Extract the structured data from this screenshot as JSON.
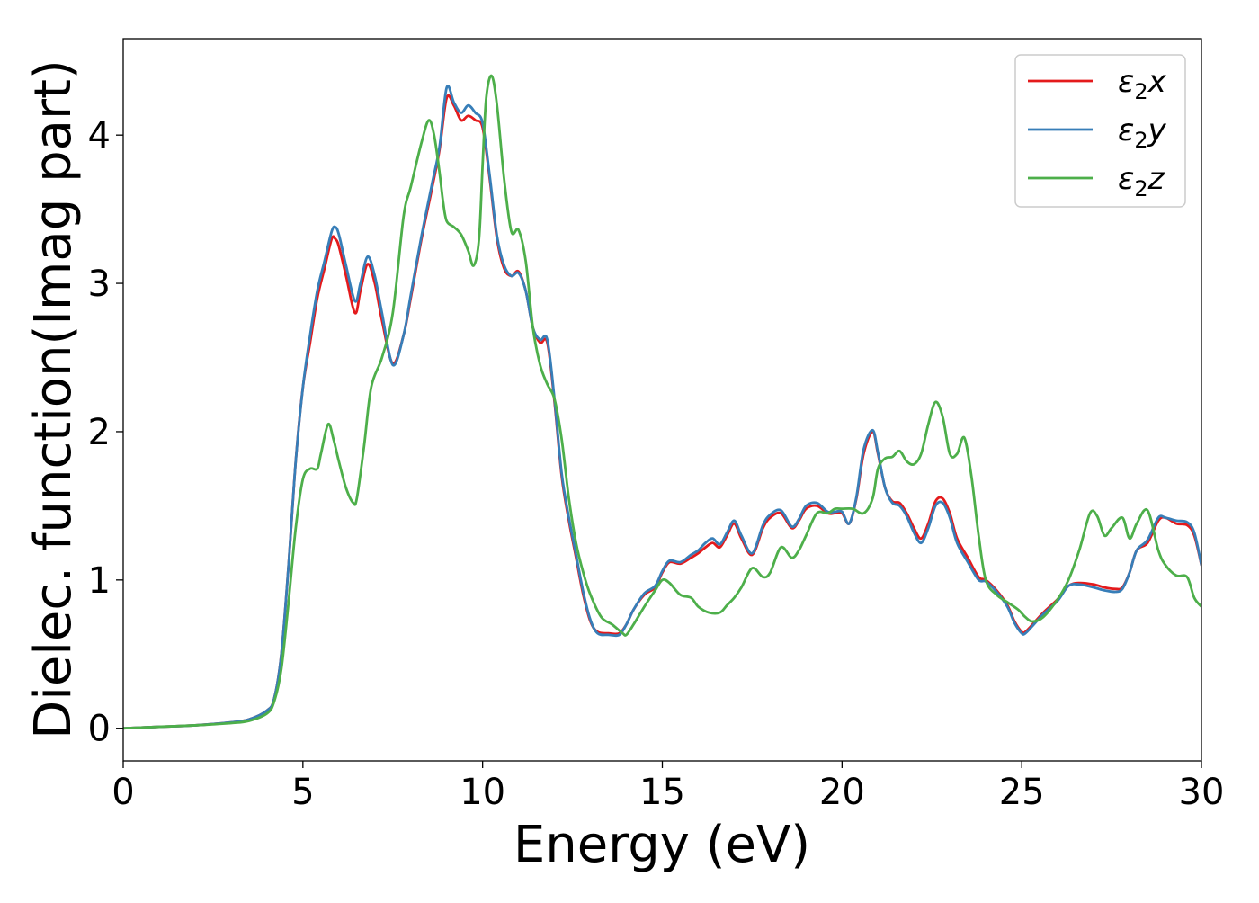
{
  "chart_data": {
    "type": "line",
    "title": "",
    "xlabel": "Energy (eV)",
    "ylabel": "Dielec. function(Imag part)",
    "xlim": [
      0,
      30
    ],
    "ylim": [
      -0.22,
      4.65
    ],
    "xticks": [
      0,
      5,
      10,
      15,
      20,
      25,
      30
    ],
    "yticks": [
      0,
      1,
      2,
      3,
      4
    ],
    "grid": false,
    "legend_position": "top-right",
    "series": [
      {
        "name": "ε₂x",
        "legend": {
          "base": "ε",
          "sub": "2",
          "suffix": "x"
        },
        "color": "#e41a1c",
        "x": [
          0,
          1,
          2,
          3,
          3.5,
          4,
          4.2,
          4.4,
          4.6,
          4.8,
          5.0,
          5.2,
          5.4,
          5.6,
          5.8,
          5.9,
          6.0,
          6.2,
          6.45,
          6.6,
          6.8,
          7.0,
          7.2,
          7.5,
          7.8,
          8.0,
          8.3,
          8.6,
          8.8,
          9.0,
          9.2,
          9.4,
          9.6,
          9.8,
          10.0,
          10.2,
          10.4,
          10.6,
          10.8,
          11.0,
          11.2,
          11.4,
          11.6,
          11.8,
          12.0,
          12.2,
          12.4,
          12.6,
          12.8,
          13.0,
          13.2,
          13.5,
          13.8,
          14.0,
          14.2,
          14.5,
          14.8,
          15.0,
          15.2,
          15.5,
          15.8,
          16.0,
          16.2,
          16.4,
          16.6,
          16.8,
          17.0,
          17.2,
          17.5,
          17.8,
          18.0,
          18.3,
          18.6,
          18.8,
          19.0,
          19.3,
          19.6,
          19.8,
          20.0,
          20.2,
          20.4,
          20.6,
          20.85,
          21.0,
          21.2,
          21.4,
          21.6,
          21.8,
          22.0,
          22.2,
          22.4,
          22.6,
          22.8,
          23.0,
          23.2,
          23.5,
          23.8,
          24.0,
          24.3,
          24.6,
          24.8,
          25.0,
          25.1,
          25.3,
          25.6,
          26.0,
          26.3,
          26.6,
          27.0,
          27.3,
          27.6,
          27.8,
          28.0,
          28.2,
          28.5,
          28.8,
          29.0,
          29.3,
          29.6,
          29.8,
          30.0
        ],
        "y": [
          0.0,
          0.01,
          0.02,
          0.04,
          0.06,
          0.12,
          0.2,
          0.5,
          1.1,
          1.8,
          2.3,
          2.6,
          2.9,
          3.1,
          3.3,
          3.3,
          3.25,
          3.05,
          2.8,
          2.95,
          3.13,
          3.0,
          2.75,
          2.46,
          2.65,
          2.9,
          3.3,
          3.65,
          3.9,
          4.25,
          4.2,
          4.1,
          4.13,
          4.1,
          4.05,
          3.7,
          3.3,
          3.1,
          3.05,
          3.08,
          2.95,
          2.7,
          2.6,
          2.6,
          2.2,
          1.7,
          1.4,
          1.15,
          0.9,
          0.72,
          0.65,
          0.64,
          0.64,
          0.7,
          0.8,
          0.9,
          0.95,
          1.05,
          1.12,
          1.11,
          1.15,
          1.18,
          1.22,
          1.25,
          1.22,
          1.3,
          1.38,
          1.28,
          1.17,
          1.35,
          1.42,
          1.45,
          1.35,
          1.4,
          1.48,
          1.5,
          1.45,
          1.45,
          1.45,
          1.38,
          1.55,
          1.85,
          2.0,
          1.85,
          1.62,
          1.53,
          1.52,
          1.45,
          1.35,
          1.28,
          1.38,
          1.53,
          1.55,
          1.45,
          1.28,
          1.15,
          1.02,
          1.0,
          0.93,
          0.83,
          0.72,
          0.65,
          0.65,
          0.7,
          0.78,
          0.87,
          0.96,
          0.98,
          0.97,
          0.95,
          0.94,
          0.95,
          1.05,
          1.2,
          1.25,
          1.4,
          1.42,
          1.38,
          1.37,
          1.3,
          1.1
        ]
      },
      {
        "name": "ε₂y",
        "legend": {
          "base": "ε",
          "sub": "2",
          "suffix": "y"
        },
        "color": "#377eb8",
        "x": [
          0,
          1,
          2,
          3,
          3.5,
          4,
          4.2,
          4.4,
          4.6,
          4.8,
          5.0,
          5.2,
          5.4,
          5.6,
          5.8,
          5.9,
          6.0,
          6.2,
          6.45,
          6.6,
          6.8,
          7.0,
          7.2,
          7.5,
          7.8,
          8.0,
          8.3,
          8.6,
          8.8,
          9.0,
          9.2,
          9.4,
          9.6,
          9.8,
          10.0,
          10.2,
          10.4,
          10.6,
          10.8,
          11.0,
          11.2,
          11.4,
          11.6,
          11.8,
          12.0,
          12.2,
          12.4,
          12.6,
          12.8,
          13.0,
          13.2,
          13.5,
          13.8,
          14.0,
          14.2,
          14.5,
          14.8,
          15.0,
          15.2,
          15.5,
          15.8,
          16.0,
          16.2,
          16.4,
          16.6,
          16.8,
          17.0,
          17.2,
          17.5,
          17.8,
          18.0,
          18.3,
          18.6,
          18.8,
          19.0,
          19.3,
          19.6,
          19.8,
          20.0,
          20.2,
          20.4,
          20.6,
          20.85,
          21.0,
          21.2,
          21.4,
          21.6,
          21.8,
          22.0,
          22.2,
          22.4,
          22.6,
          22.8,
          23.0,
          23.2,
          23.5,
          23.8,
          24.0,
          24.3,
          24.6,
          24.8,
          25.0,
          25.1,
          25.3,
          25.6,
          26.0,
          26.3,
          26.6,
          27.0,
          27.3,
          27.6,
          27.8,
          28.0,
          28.2,
          28.5,
          28.8,
          29.0,
          29.3,
          29.6,
          29.8,
          30.0
        ],
        "y": [
          0.0,
          0.01,
          0.02,
          0.04,
          0.06,
          0.12,
          0.2,
          0.5,
          1.1,
          1.8,
          2.3,
          2.65,
          2.95,
          3.15,
          3.35,
          3.38,
          3.33,
          3.12,
          2.88,
          3.0,
          3.18,
          3.05,
          2.8,
          2.45,
          2.65,
          2.92,
          3.32,
          3.68,
          3.92,
          4.32,
          4.22,
          4.15,
          4.2,
          4.15,
          4.08,
          3.72,
          3.32,
          3.12,
          3.05,
          3.07,
          2.95,
          2.7,
          2.62,
          2.62,
          2.22,
          1.72,
          1.42,
          1.17,
          0.92,
          0.73,
          0.64,
          0.63,
          0.63,
          0.7,
          0.8,
          0.91,
          0.96,
          1.06,
          1.13,
          1.12,
          1.17,
          1.2,
          1.25,
          1.28,
          1.24,
          1.32,
          1.4,
          1.3,
          1.18,
          1.37,
          1.44,
          1.47,
          1.36,
          1.41,
          1.5,
          1.52,
          1.46,
          1.46,
          1.46,
          1.38,
          1.56,
          1.88,
          2.01,
          1.86,
          1.62,
          1.52,
          1.5,
          1.43,
          1.32,
          1.25,
          1.35,
          1.5,
          1.52,
          1.42,
          1.25,
          1.12,
          1.0,
          0.99,
          0.92,
          0.82,
          0.71,
          0.64,
          0.64,
          0.69,
          0.77,
          0.86,
          0.96,
          0.97,
          0.95,
          0.93,
          0.92,
          0.94,
          1.05,
          1.2,
          1.27,
          1.42,
          1.42,
          1.4,
          1.39,
          1.32,
          1.1
        ]
      },
      {
        "name": "ε₂z",
        "legend": {
          "base": "ε",
          "sub": "2",
          "suffix": "z"
        },
        "color": "#4daf4a",
        "x": [
          0,
          1,
          2,
          3,
          3.5,
          4,
          4.2,
          4.4,
          4.6,
          4.8,
          5.0,
          5.2,
          5.4,
          5.5,
          5.7,
          5.85,
          6.0,
          6.2,
          6.4,
          6.5,
          6.7,
          6.9,
          7.2,
          7.5,
          7.8,
          8.0,
          8.3,
          8.5,
          8.65,
          8.8,
          8.9,
          9.0,
          9.2,
          9.4,
          9.6,
          9.75,
          9.9,
          10.0,
          10.1,
          10.25,
          10.4,
          10.6,
          10.8,
          11.0,
          11.2,
          11.4,
          11.6,
          11.8,
          12.0,
          12.2,
          12.4,
          12.6,
          12.8,
          13.0,
          13.3,
          13.6,
          13.9,
          14.0,
          14.2,
          14.5,
          14.8,
          15.0,
          15.2,
          15.5,
          15.8,
          16.0,
          16.3,
          16.6,
          16.8,
          17.0,
          17.2,
          17.5,
          17.8,
          18.0,
          18.3,
          18.6,
          18.8,
          19.0,
          19.3,
          19.6,
          19.8,
          20.0,
          20.3,
          20.6,
          20.85,
          21.0,
          21.2,
          21.4,
          21.6,
          21.8,
          22.0,
          22.2,
          22.4,
          22.6,
          22.8,
          23.0,
          23.2,
          23.4,
          23.6,
          23.8,
          24.0,
          24.3,
          24.6,
          24.9,
          25.1,
          25.3,
          25.6,
          26.0,
          26.3,
          26.6,
          26.9,
          27.1,
          27.3,
          27.5,
          27.8,
          28.0,
          28.2,
          28.5,
          28.8,
          29.0,
          29.3,
          29.6,
          29.8,
          30.0
        ],
        "y": [
          0.0,
          0.01,
          0.02,
          0.035,
          0.05,
          0.1,
          0.18,
          0.4,
          0.85,
          1.35,
          1.68,
          1.75,
          1.75,
          1.85,
          2.05,
          1.95,
          1.8,
          1.62,
          1.52,
          1.55,
          1.9,
          2.3,
          2.5,
          2.8,
          3.45,
          3.65,
          3.95,
          4.1,
          4.0,
          3.75,
          3.55,
          3.42,
          3.38,
          3.33,
          3.22,
          3.12,
          3.3,
          3.8,
          4.25,
          4.4,
          4.2,
          3.7,
          3.35,
          3.36,
          3.15,
          2.7,
          2.45,
          2.32,
          2.22,
          1.95,
          1.55,
          1.25,
          1.05,
          0.9,
          0.75,
          0.7,
          0.64,
          0.63,
          0.7,
          0.82,
          0.93,
          1.0,
          0.98,
          0.9,
          0.88,
          0.82,
          0.78,
          0.78,
          0.83,
          0.88,
          0.95,
          1.08,
          1.02,
          1.05,
          1.22,
          1.15,
          1.2,
          1.3,
          1.45,
          1.45,
          1.48,
          1.48,
          1.48,
          1.45,
          1.55,
          1.75,
          1.82,
          1.83,
          1.87,
          1.8,
          1.78,
          1.85,
          2.05,
          2.2,
          2.1,
          1.85,
          1.85,
          1.96,
          1.7,
          1.3,
          1.0,
          0.9,
          0.85,
          0.8,
          0.75,
          0.72,
          0.75,
          0.87,
          1.0,
          1.2,
          1.45,
          1.43,
          1.3,
          1.35,
          1.42,
          1.28,
          1.38,
          1.47,
          1.2,
          1.1,
          1.03,
          1.02,
          0.88,
          0.82
        ]
      }
    ]
  }
}
